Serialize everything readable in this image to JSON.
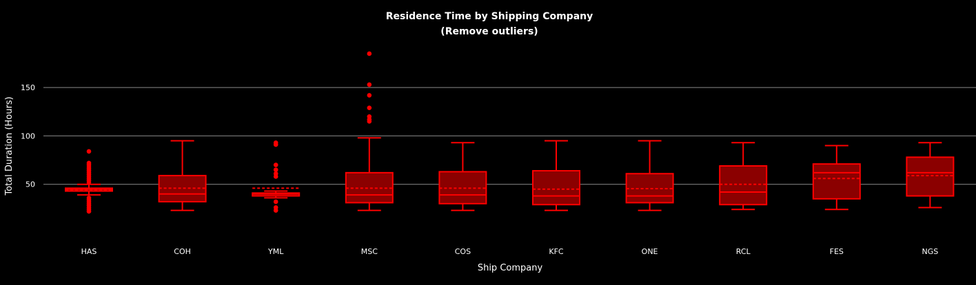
{
  "chart_data": {
    "type": "box",
    "title": "Residence Time by Shipping Company",
    "subtitle": "(Remove outliers)",
    "xlabel": "Ship Company",
    "ylabel": "Total Duration (Hours)",
    "ylim": [
      0,
      212
    ],
    "yticks": [
      50,
      100,
      150
    ],
    "grid": true,
    "colors": {
      "background": "#000000",
      "box_fill": "#8b0000",
      "box_line": "#ff0000",
      "grid": "#8a8a8a",
      "text": "#ffffff"
    },
    "categories": [
      "HAS",
      "COH",
      "YML",
      "MSC",
      "COS",
      "KFC",
      "ONE",
      "RCL",
      "FES",
      "NGS"
    ],
    "boxes": [
      {
        "category": "HAS",
        "min": 39,
        "q1": 43,
        "median": 45,
        "q3": 46,
        "max": 50,
        "mean": 44.5,
        "outliers": [
          22,
          24,
          26,
          28,
          30,
          32,
          34,
          36,
          52,
          54,
          56,
          58,
          60,
          62,
          64,
          66,
          68,
          70,
          72,
          84
        ]
      },
      {
        "category": "COH",
        "min": 23,
        "q1": 32,
        "median": 40,
        "q3": 59,
        "max": 95,
        "mean": 46,
        "outliers": []
      },
      {
        "category": "YML",
        "min": 36,
        "q1": 38,
        "median": 40,
        "q3": 41,
        "max": 43,
        "mean": 46,
        "outliers": [
          23,
          26,
          32,
          58,
          61,
          65,
          70,
          91,
          93
        ]
      },
      {
        "category": "MSC",
        "min": 23,
        "q1": 31,
        "median": 39,
        "q3": 62,
        "max": 98,
        "mean": 46,
        "outliers": [
          115,
          117,
          120,
          129,
          142,
          153,
          185
        ]
      },
      {
        "category": "COS",
        "min": 23,
        "q1": 30,
        "median": 39,
        "q3": 63,
        "max": 93,
        "mean": 46,
        "outliers": []
      },
      {
        "category": "KFC",
        "min": 23,
        "q1": 29,
        "median": 38,
        "q3": 64,
        "max": 95,
        "mean": 45,
        "outliers": []
      },
      {
        "category": "ONE",
        "min": 23,
        "q1": 31,
        "median": 38,
        "q3": 61,
        "max": 95,
        "mean": 45.5,
        "outliers": []
      },
      {
        "category": "RCL",
        "min": 24,
        "q1": 29,
        "median": 42,
        "q3": 69,
        "max": 93,
        "mean": 50,
        "outliers": []
      },
      {
        "category": "FES",
        "min": 24,
        "q1": 35,
        "median": 62,
        "q3": 71,
        "max": 90,
        "mean": 56,
        "outliers": []
      },
      {
        "category": "NGS",
        "min": 26,
        "q1": 38,
        "median": 62,
        "q3": 78,
        "max": 93,
        "mean": 59,
        "outliers": []
      }
    ]
  }
}
